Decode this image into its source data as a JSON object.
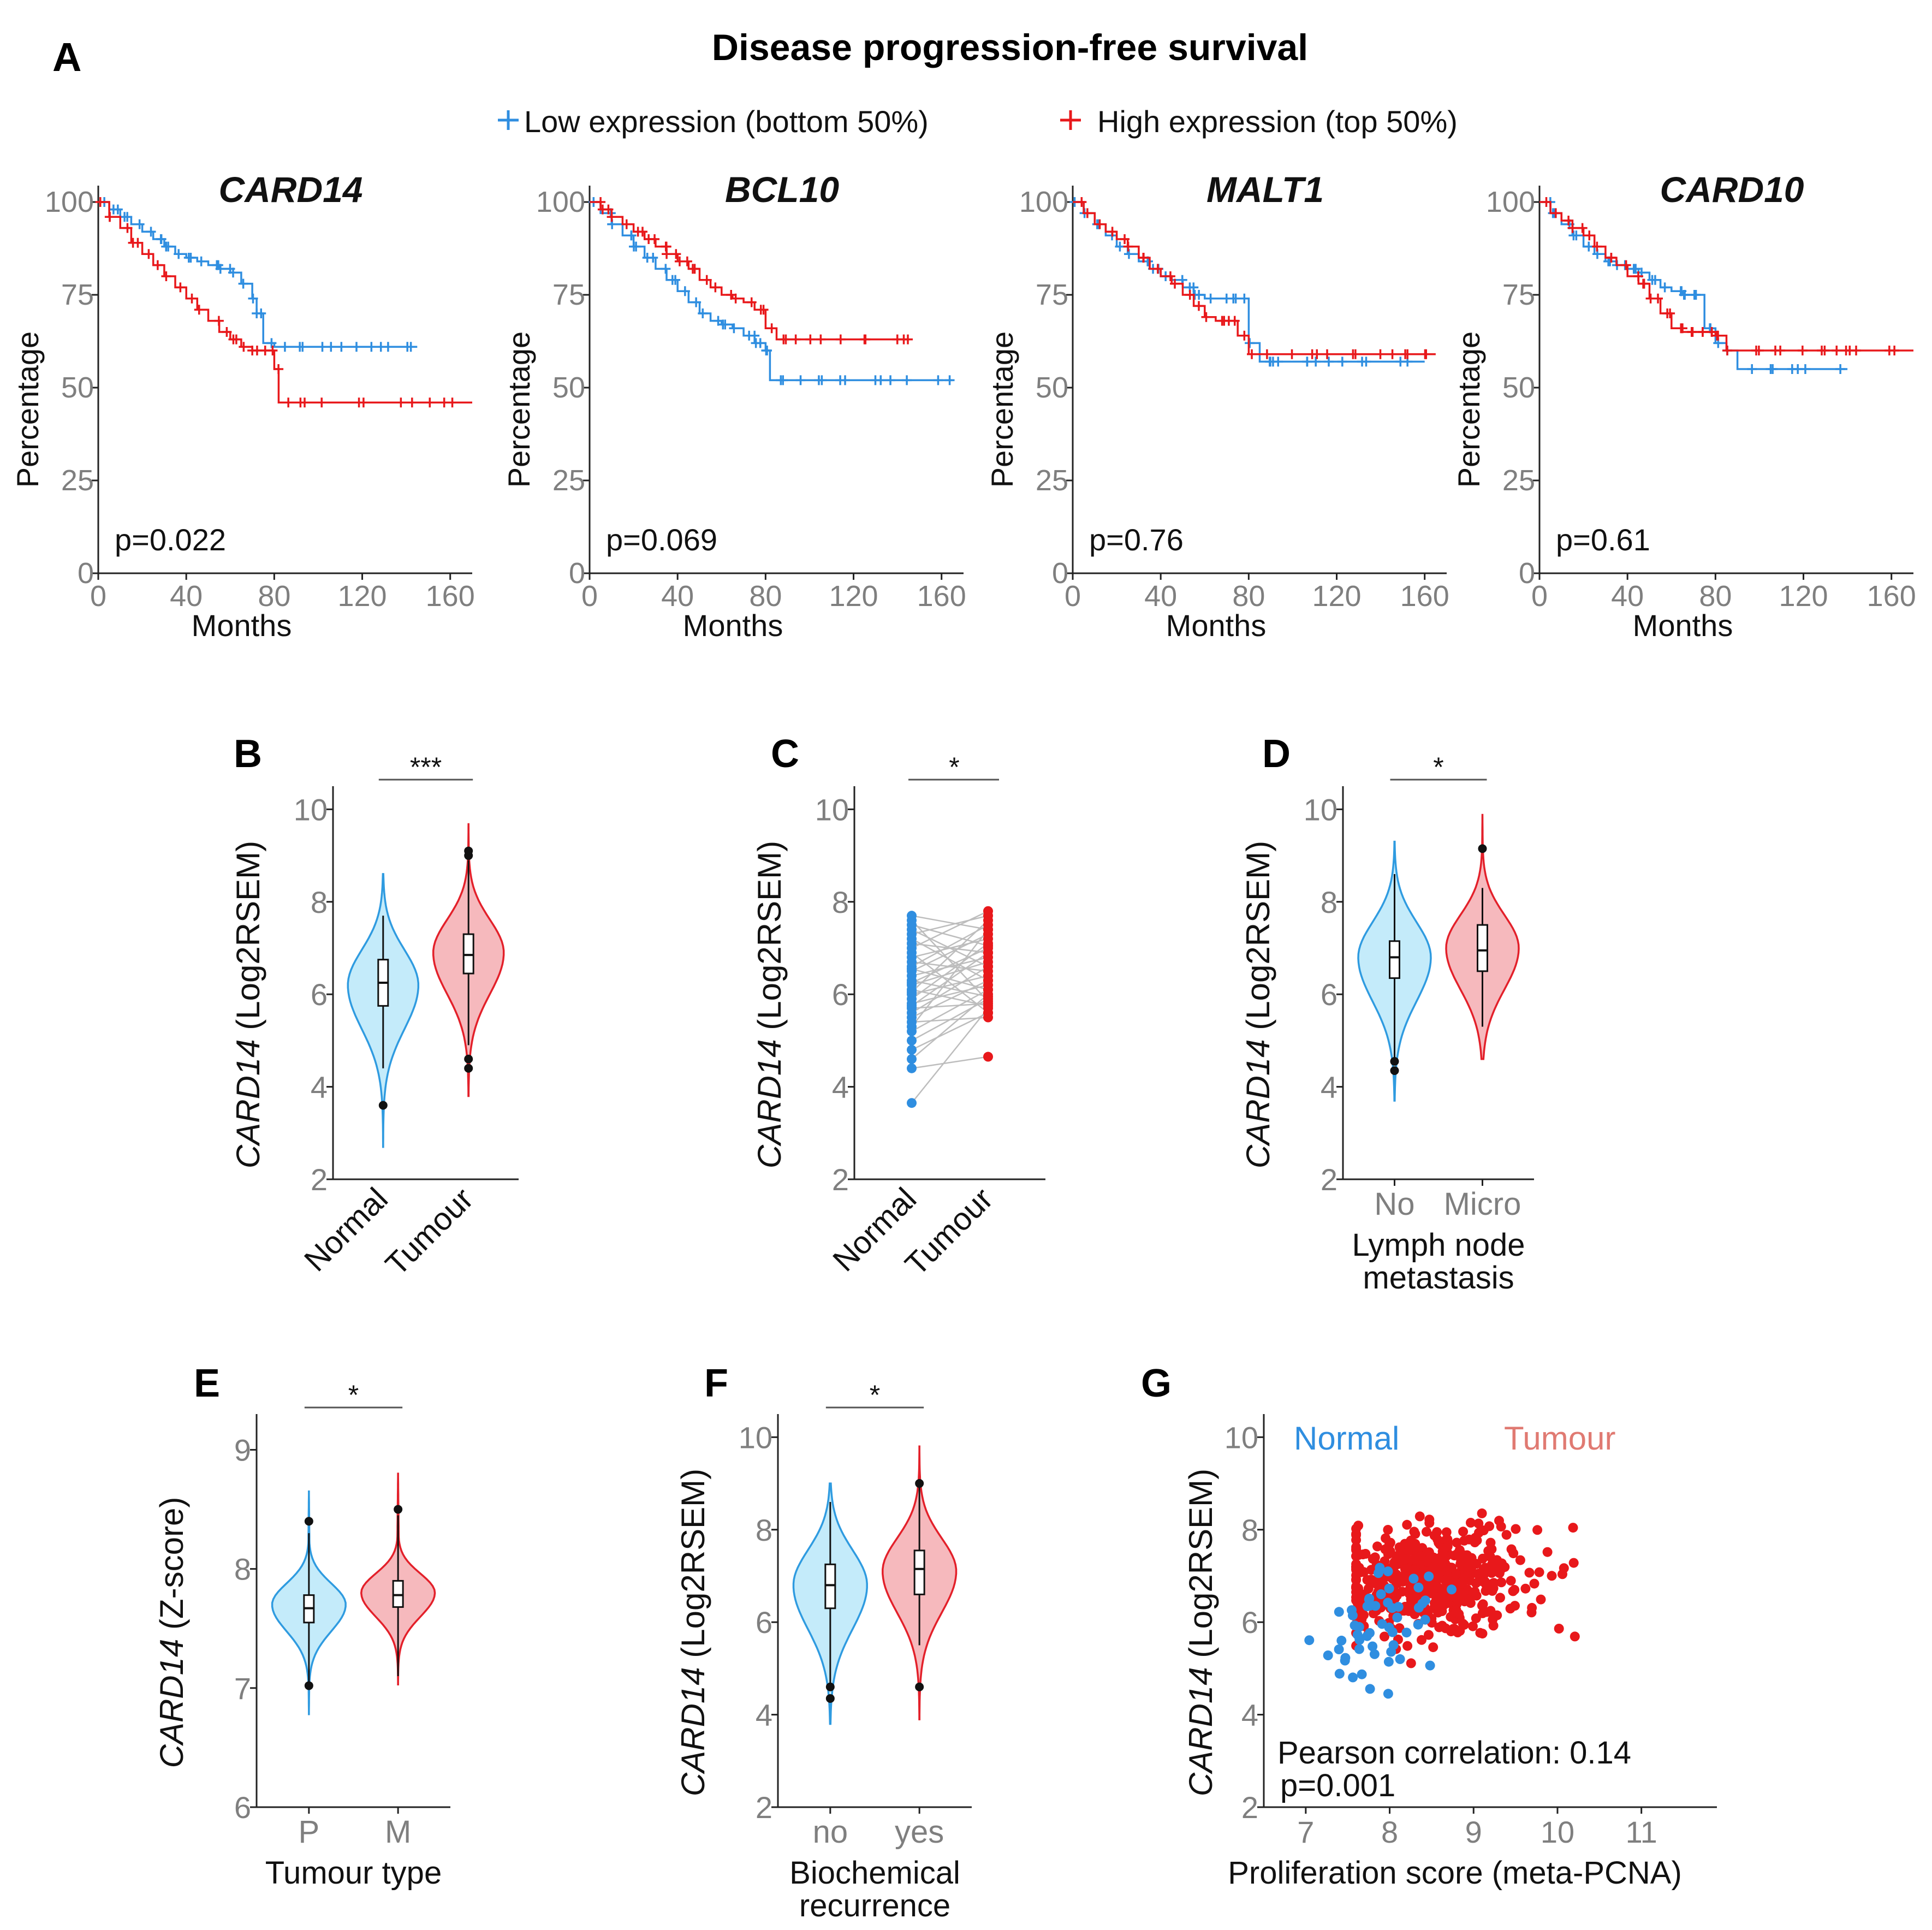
{
  "figure": {
    "main_title": "Disease progression-free survival",
    "colors": {
      "low": "#2f8ee0",
      "high": "#e8181b",
      "normal_fill": "#c4ebfa",
      "normal_line": "#2f9be0",
      "tumour_fill": "#f6b9bd",
      "tumour_line": "#e3202a",
      "axis": "#222222",
      "tick": "#7f7f7f"
    }
  },
  "chart_data": [
    {
      "panel": "A",
      "type": "line",
      "subtype": "kaplan-meier",
      "legend": [
        "Low expression (bottom 50%)",
        "High expression (top 50%)"
      ],
      "xlabel": "Months",
      "ylabel": "Percentage",
      "xticks": [
        "0",
        "40",
        "80",
        "120",
        "160"
      ],
      "yticks": [
        "0",
        "25",
        "50",
        "75",
        "100"
      ],
      "xlim": [
        0,
        170
      ],
      "ylim": [
        0,
        100
      ],
      "plots": [
        {
          "title": "CARD14",
          "pvalue": "p=0.022",
          "series": [
            {
              "name": "Low expression (bottom 50%)",
              "x": [
                0,
                5,
                10,
                15,
                20,
                25,
                30,
                35,
                40,
                45,
                50,
                55,
                60,
                65,
                70,
                72,
                75,
                80,
                90,
                100,
                110,
                120,
                130,
                140,
                145
              ],
              "y": [
                100,
                98,
                96,
                94,
                92,
                90,
                88,
                86,
                85,
                84,
                83,
                82,
                81,
                78,
                74,
                70,
                62,
                61,
                61,
                61,
                61,
                61,
                61,
                61,
                61
              ]
            },
            {
              "name": "High expression (top 50%)",
              "x": [
                0,
                5,
                10,
                15,
                20,
                25,
                30,
                35,
                40,
                45,
                50,
                55,
                60,
                65,
                70,
                75,
                80,
                82,
                90,
                100,
                110,
                120,
                130,
                140,
                150,
                160,
                170
              ],
              "y": [
                100,
                96,
                93,
                89,
                86,
                83,
                80,
                77,
                74,
                71,
                68,
                65,
                63,
                61,
                60,
                60,
                55,
                46,
                46,
                46,
                46,
                46,
                46,
                46,
                46,
                46,
                46
              ]
            }
          ]
        },
        {
          "title": "BCL10",
          "pvalue": "p=0.069",
          "series": [
            {
              "name": "Low expression (bottom 50%)",
              "x": [
                0,
                5,
                10,
                15,
                20,
                25,
                30,
                35,
                40,
                45,
                50,
                55,
                60,
                65,
                70,
                75,
                80,
                82,
                90,
                100,
                110,
                120,
                130,
                140,
                150,
                160,
                165
              ],
              "y": [
                100,
                97,
                94,
                91,
                88,
                85,
                82,
                79,
                76,
                73,
                70,
                68,
                67,
                66,
                64,
                62,
                60,
                52,
                52,
                52,
                52,
                52,
                52,
                52,
                52,
                52,
                52
              ]
            },
            {
              "name": "High expression (top 50%)",
              "x": [
                0,
                5,
                10,
                15,
                20,
                25,
                30,
                35,
                40,
                45,
                50,
                55,
                60,
                65,
                70,
                75,
                80,
                85,
                90,
                100,
                110,
                120,
                130,
                140,
                145
              ],
              "y": [
                100,
                98,
                96,
                94,
                92,
                90,
                88,
                86,
                84,
                82,
                79,
                77,
                75,
                74,
                73,
                71,
                66,
                63,
                63,
                63,
                63,
                63,
                63,
                63,
                63
              ]
            }
          ]
        },
        {
          "title": "MALT1",
          "pvalue": "p=0.76",
          "series": [
            {
              "name": "Low expression (bottom 50%)",
              "x": [
                0,
                5,
                10,
                15,
                20,
                25,
                30,
                35,
                40,
                45,
                50,
                55,
                60,
                65,
                70,
                75,
                80,
                85,
                90,
                100,
                110,
                120,
                130,
                140,
                150,
                160
              ],
              "y": [
                100,
                97,
                94,
                91,
                88,
                86,
                84,
                82,
                80,
                79,
                77,
                75,
                74,
                74,
                74,
                74,
                62,
                57,
                57,
                57,
                57,
                57,
                57,
                57,
                57,
                57
              ]
            },
            {
              "name": "High expression (top 50%)",
              "x": [
                0,
                5,
                10,
                15,
                20,
                25,
                30,
                35,
                40,
                45,
                50,
                55,
                60,
                65,
                70,
                75,
                80,
                85,
                90,
                100,
                110,
                120,
                130,
                140,
                150,
                160,
                165
              ],
              "y": [
                100,
                97,
                94,
                92,
                90,
                88,
                85,
                82,
                80,
                78,
                75,
                72,
                69,
                68,
                68,
                64,
                59,
                59,
                59,
                59,
                59,
                59,
                59,
                59,
                59,
                59,
                59
              ]
            }
          ]
        },
        {
          "title": "CARD10",
          "pvalue": "p=0.61",
          "series": [
            {
              "name": "Low expression (bottom 50%)",
              "x": [
                0,
                5,
                10,
                15,
                20,
                25,
                30,
                35,
                40,
                45,
                50,
                55,
                60,
                65,
                70,
                75,
                80,
                85,
                90,
                100,
                110,
                120,
                130,
                140
              ],
              "y": [
                100,
                97,
                94,
                91,
                88,
                86,
                84,
                83,
                82,
                81,
                79,
                77,
                76,
                75,
                75,
                66,
                62,
                60,
                55,
                55,
                55,
                55,
                55,
                55
              ]
            },
            {
              "name": "High expression (top 50%)",
              "x": [
                0,
                5,
                10,
                15,
                20,
                25,
                30,
                35,
                40,
                45,
                50,
                55,
                60,
                65,
                70,
                75,
                80,
                85,
                90,
                100,
                110,
                120,
                130,
                140,
                150,
                160,
                170
              ],
              "y": [
                100,
                97,
                95,
                93,
                91,
                88,
                85,
                83,
                80,
                78,
                74,
                70,
                66,
                65,
                65,
                65,
                64,
                60,
                60,
                60,
                60,
                60,
                60,
                60,
                60,
                60,
                60
              ]
            }
          ]
        }
      ]
    },
    {
      "panel": "B",
      "type": "violin",
      "ylabel_italic": "CARD14",
      "ylabel_rest": " (Log2RSEM)",
      "categories": [
        "Normal",
        "Tumour"
      ],
      "rotate_labels": true,
      "yticks": [
        "2",
        "4",
        "6",
        "8",
        "10"
      ],
      "ylim": [
        2,
        10.5
      ],
      "significance": "***",
      "groups": [
        {
          "name": "Normal",
          "min": 2.7,
          "max": 8.6,
          "q1": 5.75,
          "median": 6.25,
          "q3": 6.75,
          "whisker_low": 4.4,
          "whisker_high": 7.7,
          "outliers": [
            3.6
          ],
          "peak": 6.2,
          "spread": 0.85
        },
        {
          "name": "Tumour",
          "min": 3.8,
          "max": 9.7,
          "q1": 6.45,
          "median": 6.85,
          "q3": 7.3,
          "whisker_low": 4.9,
          "whisker_high": 8.9,
          "outliers": [
            4.4,
            4.6,
            9.0,
            9.1
          ],
          "peak": 6.9,
          "spread": 0.8
        }
      ]
    },
    {
      "panel": "C",
      "type": "scatter",
      "subtype": "paired",
      "ylabel_italic": "CARD14",
      "ylabel_rest": " (Log2RSEM)",
      "categories": [
        "Normal",
        "Tumour"
      ],
      "rotate_labels": true,
      "yticks": [
        "2",
        "4",
        "6",
        "8",
        "10"
      ],
      "ylim": [
        2,
        10.5
      ],
      "significance": "*",
      "pairs": [
        [
          3.65,
          5.7
        ],
        [
          4.4,
          4.65
        ],
        [
          4.6,
          6.0
        ],
        [
          4.8,
          5.6
        ],
        [
          5.0,
          5.9
        ],
        [
          5.2,
          6.1
        ],
        [
          5.3,
          7.4
        ],
        [
          5.4,
          5.5
        ],
        [
          5.5,
          6.3
        ],
        [
          5.6,
          6.6
        ],
        [
          5.7,
          5.8
        ],
        [
          5.75,
          6.9
        ],
        [
          5.8,
          6.2
        ],
        [
          5.9,
          7.1
        ],
        [
          6.0,
          6.4
        ],
        [
          6.05,
          7.6
        ],
        [
          6.1,
          5.75
        ],
        [
          6.2,
          6.7
        ],
        [
          6.25,
          7.0
        ],
        [
          6.3,
          5.95
        ],
        [
          6.4,
          6.8
        ],
        [
          6.5,
          7.3
        ],
        [
          6.55,
          6.1
        ],
        [
          6.6,
          7.5
        ],
        [
          6.7,
          6.5
        ],
        [
          6.8,
          7.2
        ],
        [
          6.9,
          5.6
        ],
        [
          7.0,
          7.8
        ],
        [
          7.1,
          6.9
        ],
        [
          7.2,
          6.3
        ],
        [
          7.3,
          7.7
        ],
        [
          7.4,
          6.6
        ],
        [
          7.5,
          7.05
        ],
        [
          7.6,
          5.85
        ],
        [
          7.7,
          7.4
        ]
      ]
    },
    {
      "panel": "D",
      "type": "violin",
      "ylabel_italic": "CARD14",
      "ylabel_rest": " (Log2RSEM)",
      "categories": [
        "No",
        "Micro"
      ],
      "rotate_labels": false,
      "xlabel": [
        "Lymph node",
        "metastasis"
      ],
      "yticks": [
        "2",
        "4",
        "6",
        "8",
        "10"
      ],
      "ylim": [
        2,
        10.5
      ],
      "significance": "*",
      "groups": [
        {
          "name": "No",
          "min": 3.7,
          "max": 9.3,
          "q1": 6.35,
          "median": 6.8,
          "q3": 7.15,
          "whisker_low": 4.6,
          "whisker_high": 8.6,
          "outliers": [
            4.35,
            4.55
          ],
          "peak": 6.8,
          "spread": 0.85
        },
        {
          "name": "Micro",
          "min": 4.6,
          "max": 9.9,
          "q1": 6.5,
          "median": 6.95,
          "q3": 7.5,
          "whisker_low": 5.3,
          "whisker_high": 8.3,
          "outliers": [
            9.15
          ],
          "peak": 7.0,
          "spread": 0.8
        }
      ]
    },
    {
      "panel": "E",
      "type": "violin",
      "ylabel_italic": "CARD14",
      "ylabel_rest": " (Z-score)",
      "categories": [
        "P",
        "M"
      ],
      "rotate_labels": false,
      "xlabel": [
        "Tumour type"
      ],
      "yticks": [
        "6",
        "7",
        "8",
        "9"
      ],
      "ylim": [
        6,
        9.3
      ],
      "significance": "*",
      "groups": [
        {
          "name": "P",
          "min": 6.78,
          "max": 8.65,
          "q1": 7.55,
          "median": 7.67,
          "q3": 7.78,
          "whisker_low": 7.02,
          "whisker_high": 8.3,
          "outliers": [
            7.02,
            8.4
          ],
          "peak": 7.7,
          "spread": 0.2
        },
        {
          "name": "M",
          "min": 7.03,
          "max": 8.8,
          "q1": 7.68,
          "median": 7.78,
          "q3": 7.9,
          "whisker_low": 7.1,
          "whisker_high": 8.45,
          "outliers": [
            8.5
          ],
          "peak": 7.8,
          "spread": 0.18
        }
      ]
    },
    {
      "panel": "F",
      "type": "violin",
      "ylabel_italic": "CARD14",
      "ylabel_rest": " (Log2RSEM)",
      "categories": [
        "no",
        "yes"
      ],
      "rotate_labels": false,
      "xlabel": [
        "Biochemical",
        "recurrence"
      ],
      "yticks": [
        "2",
        "4",
        "6",
        "8",
        "10"
      ],
      "ylim": [
        2,
        10.5
      ],
      "significance": "*",
      "groups": [
        {
          "name": "no",
          "min": 3.8,
          "max": 9.0,
          "q1": 6.3,
          "median": 6.8,
          "q3": 7.25,
          "whisker_low": 4.6,
          "whisker_high": 8.6,
          "outliers": [
            4.35,
            4.6
          ],
          "peak": 6.8,
          "spread": 0.85
        },
        {
          "name": "yes",
          "min": 3.9,
          "max": 9.8,
          "q1": 6.6,
          "median": 7.15,
          "q3": 7.55,
          "whisker_low": 5.5,
          "whisker_high": 9.0,
          "outliers": [
            4.6,
            9.0
          ],
          "peak": 7.1,
          "spread": 0.8
        }
      ]
    },
    {
      "panel": "G",
      "type": "scatter",
      "ylabel_italic": "CARD14",
      "ylabel_rest": " (Log2RSEM)",
      "xlabel": "Proliferation score (meta-PCNA)",
      "xticks": [
        "7",
        "8",
        "9",
        "10",
        "11"
      ],
      "xlim": [
        6.5,
        11.9
      ],
      "yticks": [
        "2",
        "4",
        "6",
        "8",
        "10"
      ],
      "ylim": [
        2,
        10.5
      ],
      "legend": [
        "Normal",
        "Tumour"
      ],
      "stat_lines": [
        "Pearson correlation: 0.14",
        "p=0.001"
      ],
      "seed": 20240731
    }
  ]
}
